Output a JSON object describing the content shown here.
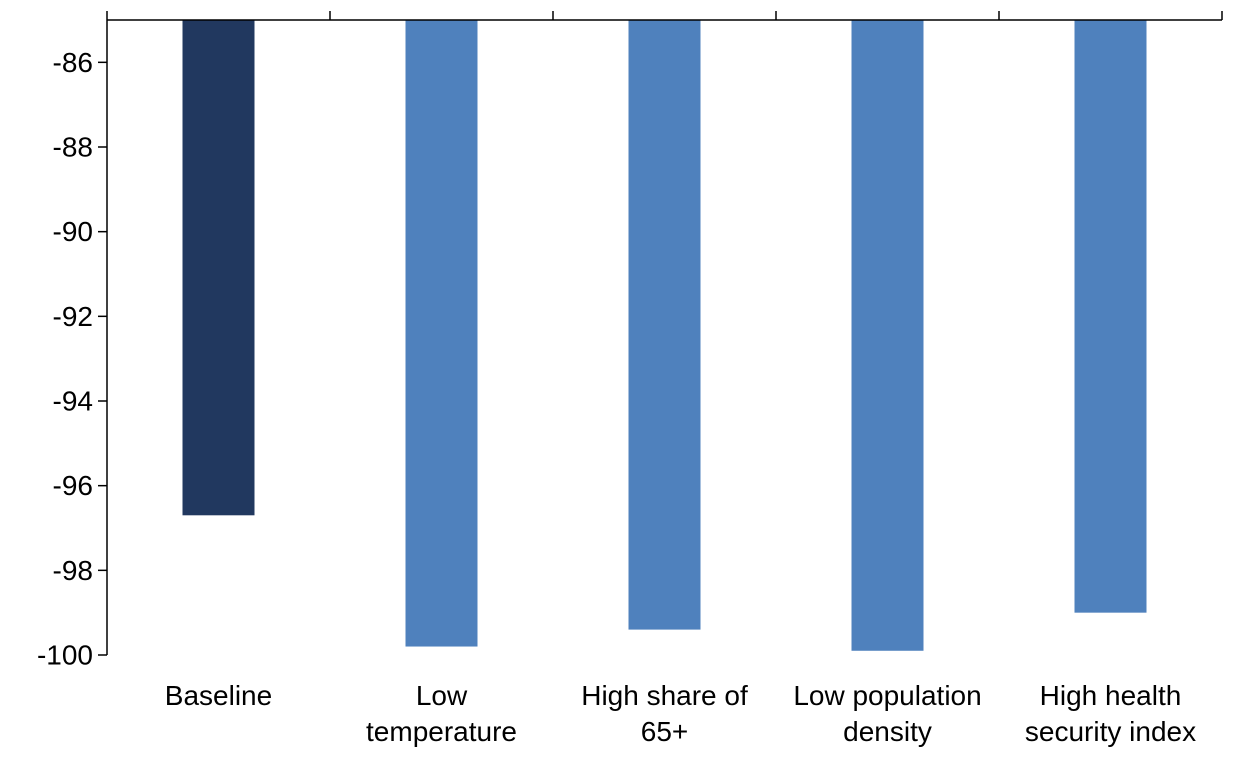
{
  "chart_data": {
    "type": "bar",
    "categories": [
      [
        "Baseline"
      ],
      [
        "Low",
        "temperature"
      ],
      [
        "High share of",
        "65+"
      ],
      [
        "Low population",
        "density"
      ],
      [
        "High health",
        "security index"
      ]
    ],
    "values": [
      -96.7,
      -99.8,
      -99.4,
      -99.9,
      -99.0
    ],
    "bar_colors": [
      "#21385f",
      "#4f81bd",
      "#4f81bd",
      "#4f81bd",
      "#4f81bd"
    ],
    "title": "",
    "xlabel": "",
    "ylabel": "",
    "ylim": [
      -100,
      -85
    ],
    "yticks": [
      -86,
      -88,
      -90,
      -92,
      -94,
      -96,
      -98,
      -100
    ],
    "ytick_labels": [
      "-86",
      "-88",
      "-90",
      "-92",
      "-94",
      "-96",
      "-98",
      "-100"
    ],
    "category_axis_position": "top",
    "grid": false,
    "legend": "none"
  }
}
